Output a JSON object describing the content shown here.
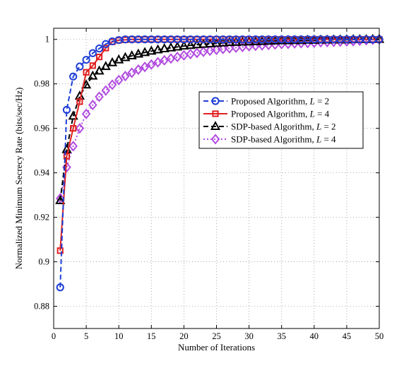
{
  "chart_data": {
    "type": "line",
    "title": "",
    "xlabel": "Number of Iterations",
    "ylabel": "Normalized Minimum Secrecy Rate (bits/sec/Hz)",
    "xlim": [
      0,
      50
    ],
    "ylim": [
      0.87,
      1.005
    ],
    "xticks": [
      0,
      5,
      10,
      15,
      20,
      25,
      30,
      35,
      40,
      45,
      50
    ],
    "yticks": [
      0.88,
      0.9,
      0.92,
      0.94,
      0.96,
      0.98,
      1.0
    ],
    "xtick_labels": [
      "0",
      "5",
      "10",
      "15",
      "20",
      "25",
      "30",
      "35",
      "40",
      "45",
      "50"
    ],
    "ytick_labels": [
      "0.88",
      "0.9",
      "0.92",
      "0.94",
      "0.96",
      "0.98",
      "1"
    ],
    "grid": true,
    "legend_position": "center-right",
    "series": [
      {
        "name": "Proposed Algorithm, L = 2",
        "legend_prefix": "Proposed Algorithm, ",
        "legend_var": "L",
        "legend_val": " = 2",
        "color": "#1f3fd6",
        "line_style": "dashed",
        "marker": "circle",
        "x": [
          1,
          2,
          3,
          4,
          5,
          6,
          7,
          8,
          9,
          10,
          11,
          12,
          13,
          14,
          15,
          16,
          17,
          18,
          19,
          20,
          21,
          22,
          23,
          24,
          25,
          26,
          27,
          28,
          29,
          30,
          31,
          32,
          33,
          34,
          35,
          36,
          37,
          38,
          39,
          40,
          41,
          42,
          43,
          44,
          45,
          46,
          47,
          48,
          49,
          50
        ],
        "values": [
          0.8885,
          0.9683,
          0.9833,
          0.9878,
          0.9908,
          0.9938,
          0.9959,
          0.9979,
          0.9991,
          0.9997,
          1.0,
          1.0,
          1.0,
          1.0,
          1.0,
          1.0,
          1.0,
          1.0,
          1.0,
          1.0,
          1.0,
          1.0,
          1.0,
          1.0,
          1.0,
          1.0,
          1.0,
          1.0,
          1.0,
          1.0,
          1.0,
          1.0,
          1.0,
          1.0,
          1.0,
          1.0,
          1.0,
          1.0,
          1.0,
          1.0,
          1.0,
          1.0,
          1.0,
          1.0,
          1.0,
          1.0,
          1.0,
          1.0,
          1.0,
          1.0
        ]
      },
      {
        "name": "Proposed Algorithm, L = 4",
        "legend_prefix": "Proposed Algorithm, ",
        "legend_var": "L",
        "legend_val": " = 4",
        "color": "#e02020",
        "line_style": "solid",
        "marker": "square",
        "x": [
          1,
          2,
          3,
          4,
          5,
          6,
          7,
          8,
          9,
          10,
          11,
          12,
          13,
          14,
          15,
          16,
          17,
          18,
          19,
          20,
          21,
          22,
          23,
          24,
          25,
          26,
          27,
          28,
          29,
          30,
          31,
          32,
          33,
          34,
          35,
          36,
          37,
          38,
          39,
          40,
          41,
          42,
          43,
          44,
          45,
          46,
          47,
          48,
          49,
          50
        ],
        "values": [
          0.905,
          0.9475,
          0.96,
          0.972,
          0.9852,
          0.9882,
          0.9921,
          0.9961,
          0.9989,
          0.9996,
          0.9998,
          1.0,
          1.0,
          1.0,
          1.0,
          1.0,
          1.0,
          1.0,
          1.0,
          1.0,
          1.0,
          1.0,
          1.0,
          1.0,
          1.0,
          1.0,
          1.0,
          1.0,
          1.0,
          1.0,
          1.0,
          1.0,
          1.0,
          1.0,
          1.0,
          1.0,
          1.0,
          1.0,
          1.0,
          1.0,
          1.0,
          1.0,
          1.0,
          1.0,
          1.0,
          1.0,
          1.0,
          1.0,
          1.0,
          1.0
        ]
      },
      {
        "name": "SDP-based Algorithm, L = 2",
        "legend_prefix": "SDP-based Algorithm, ",
        "legend_var": "L",
        "legend_val": " = 2",
        "color": "#000000",
        "line_style": "dashed",
        "marker": "triangle",
        "x": [
          1,
          2,
          3,
          4,
          5,
          6,
          7,
          8,
          9,
          10,
          11,
          12,
          13,
          14,
          15,
          16,
          17,
          18,
          19,
          20,
          21,
          22,
          23,
          24,
          25,
          26,
          27,
          28,
          29,
          30,
          31,
          32,
          33,
          34,
          35,
          36,
          37,
          38,
          39,
          40,
          41,
          42,
          43,
          44,
          45,
          46,
          47,
          48,
          49,
          50
        ],
        "values": [
          0.9275,
          0.9505,
          0.9655,
          0.9745,
          0.9795,
          0.9835,
          0.9858,
          0.9878,
          0.9895,
          0.9908,
          0.9918,
          0.9926,
          0.9934,
          0.9941,
          0.9947,
          0.9953,
          0.9958,
          0.9962,
          0.9966,
          0.997,
          0.9973,
          0.9976,
          0.9978,
          0.998,
          0.9982,
          0.9984,
          0.9986,
          0.9987,
          0.9988,
          0.9989,
          0.999,
          0.9991,
          0.9992,
          0.9993,
          0.9994,
          0.9994,
          0.9995,
          0.9995,
          0.9996,
          0.9996,
          0.9997,
          0.9997,
          0.9998,
          0.9998,
          0.9998,
          0.9999,
          0.9999,
          0.9999,
          1.0,
          1.0
        ]
      },
      {
        "name": "SDP-based Algorithm, L = 4",
        "legend_prefix": "SDP-based Algorithm, ",
        "legend_var": "L",
        "legend_val": " = 4",
        "color": "#b24ce0",
        "line_style": "dotted",
        "marker": "diamond",
        "x": [
          1,
          2,
          3,
          4,
          5,
          6,
          7,
          8,
          9,
          10,
          11,
          12,
          13,
          14,
          15,
          16,
          17,
          18,
          19,
          20,
          21,
          22,
          23,
          24,
          25,
          26,
          27,
          28,
          29,
          30,
          31,
          32,
          33,
          34,
          35,
          36,
          37,
          38,
          39,
          40,
          41,
          42,
          43,
          44,
          45,
          46,
          47,
          48,
          49,
          50
        ],
        "values": [
          0.9285,
          0.9425,
          0.952,
          0.96,
          0.9665,
          0.9705,
          0.9742,
          0.977,
          0.9796,
          0.9817,
          0.9835,
          0.985,
          0.9864,
          0.9876,
          0.9887,
          0.9897,
          0.9906,
          0.9914,
          0.9921,
          0.9928,
          0.9934,
          0.9939,
          0.9944,
          0.9949,
          0.9953,
          0.9957,
          0.996,
          0.9963,
          0.9966,
          0.9969,
          0.9971,
          0.9973,
          0.9975,
          0.9977,
          0.9979,
          0.998,
          0.9982,
          0.9983,
          0.9984,
          0.9985,
          0.9987,
          0.9988,
          0.9989,
          0.999,
          0.9991,
          0.9992,
          0.9994,
          0.9996,
          0.9998,
          1.0
        ]
      }
    ]
  }
}
